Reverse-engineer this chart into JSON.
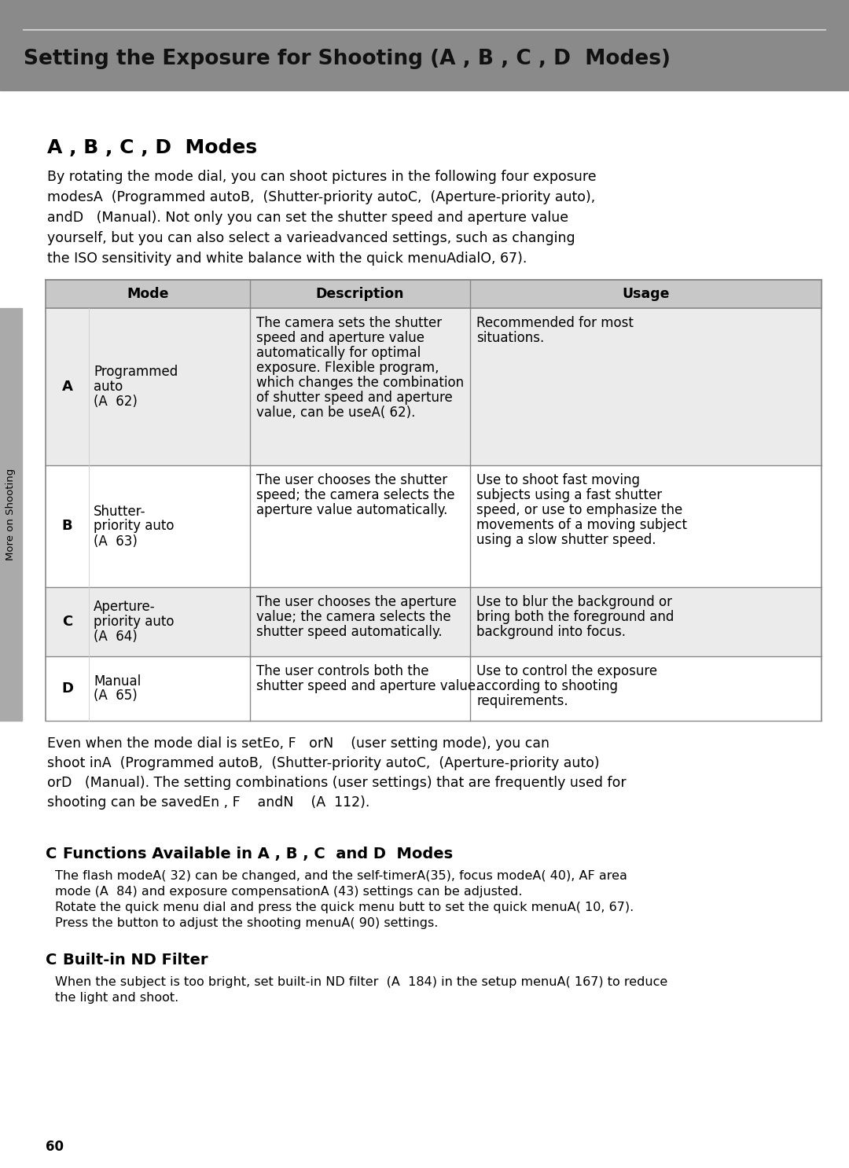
{
  "header_bg": "#8a8a8a",
  "header_line_color": "#cccccc",
  "header_title": "Setting the Exposure for Shooting (A , B , C , D  Modes)",
  "section_title": "A , B , C , D  Modes",
  "body_bg": "#ffffff",
  "table_header_bg": "#c8c8c8",
  "table_row0_bg": "#ebebeb",
  "table_row1_bg": "#ffffff",
  "table_border_color": "#888888",
  "sidebar_bg": "#aaaaaa",
  "sidebar_text": "More on Shooting",
  "page_number": "60",
  "intro_lines": [
    "By rotating the mode dial, you can shoot pictures in the following four exposure",
    "modesA  (Programmed autoB,  (Shutter-priority autoC,  (Aperture-priority auto),",
    "andD   (Manual). Not only you can set the shutter speed and aperture value",
    "yourself, but you can also select a varieadvanced settings, such as changing",
    "the ISO sensitivity and white balance with the quick menuAdialO, 67)."
  ],
  "table_headers": [
    "Mode",
    "Description",
    "Usage"
  ],
  "rows": [
    {
      "letter": "A",
      "mode": [
        "Programmed",
        "auto",
        "(A  62)"
      ],
      "desc": [
        "The camera sets the shutter",
        "speed and aperture value",
        "automatically for optimal",
        "exposure. Flexible program,",
        "which changes the combination",
        "of shutter speed and aperture",
        "value, can be useA( 62)."
      ],
      "usage": [
        "Recommended for most",
        "situations."
      ]
    },
    {
      "letter": "B",
      "mode": [
        "Shutter-",
        "priority auto",
        "(A  63)"
      ],
      "desc": [
        "The user chooses the shutter",
        "speed; the camera selects the",
        "aperture value automatically."
      ],
      "usage": [
        "Use to shoot fast moving",
        "subjects using a fast shutter",
        "speed, or use to emphasize the",
        "movements of a moving subject",
        "using a slow shutter speed."
      ]
    },
    {
      "letter": "C",
      "mode": [
        "Aperture-",
        "priority auto",
        "(A  64)"
      ],
      "desc": [
        "The user chooses the aperture",
        "value; the camera selects the",
        "shutter speed automatically."
      ],
      "usage": [
        "Use to blur the background or",
        "bring both the foreground and",
        "background into focus."
      ]
    },
    {
      "letter": "D",
      "mode": [
        "Manual",
        "(A  65)"
      ],
      "desc": [
        "The user controls both the",
        "shutter speed and aperture value."
      ],
      "usage": [
        "Use to control the exposure",
        "according to shooting",
        "requirements."
      ]
    }
  ],
  "even_lines": [
    "Even when the mode dial is setEo, F   orN    (user setting mode), you can",
    "shoot inA  (Programmed autoB,  (Shutter-priority autoC,  (Aperture-priority auto)",
    "orD   (Manual). The setting combinations (user settings) that are frequently used for",
    "shooting can be savedEn , F    andN    (A  112)."
  ],
  "sec2_label": "C",
  "sec2_title": "Functions Available in A , B , C  and D  Modes",
  "sec2_lines": [
    "The flash modeA( 32) can be changed, and the self-timerA(35), focus modeA( 40), AF area",
    "mode (A  84) and exposure compensationA (43) settings can be adjusted.",
    "Rotate the quick menu dial and press the quick menu butt to set the quick menuA( 10, 67).",
    "Press the button to adjust the shooting menuA( 90) settings."
  ],
  "sec3_label": "C",
  "sec3_title": "Built-in ND Filter",
  "sec3_lines": [
    "When the subject is too bright, set built-in ND filter  (A  184) in the setup menuA( 167) to reduce",
    "the light and shoot."
  ]
}
